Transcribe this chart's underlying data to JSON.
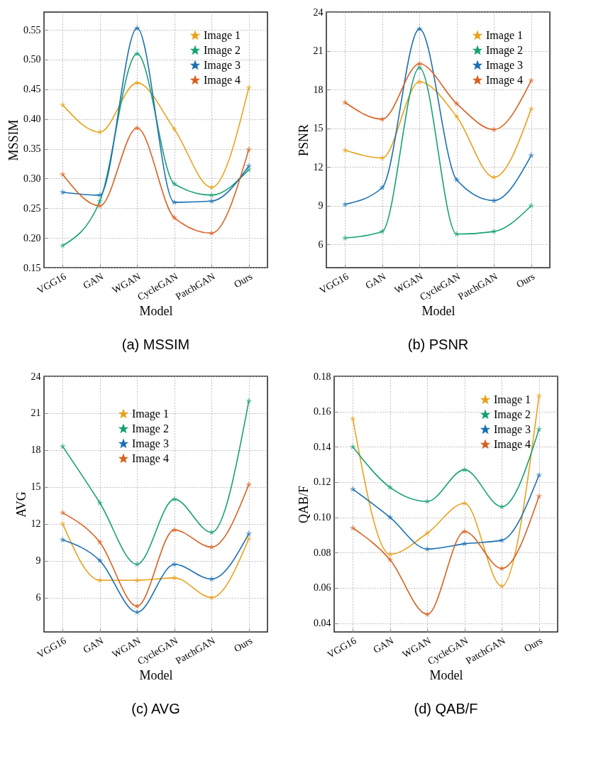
{
  "chart_data": [
    {
      "type": "line",
      "title": "(a) MSSIM",
      "xlabel": "Model",
      "ylabel": "MSSIM",
      "categories": [
        "VGG16",
        "GAN",
        "WGAN",
        "CycleGAN",
        "PatchGAN",
        "Ours"
      ],
      "ylim": [
        0.15,
        0.58
      ],
      "yticks": [
        0.15,
        {
          "value": 0.2,
          "label": "0.20"
        },
        0.25,
        {
          "value": 0.3,
          "label": "0.30"
        },
        0.35,
        {
          "value": 0.4,
          "label": "0.40"
        },
        0.45,
        {
          "value": 0.5,
          "label": "0.50"
        },
        0.55
      ],
      "grid": true,
      "legend": "top right",
      "marker": "star",
      "line_style": "solid",
      "series": [
        {
          "name": "Image 1",
          "color": "#e8a21c",
          "values": [
            0.424,
            0.378,
            0.461,
            0.383,
            0.285,
            0.453
          ]
        },
        {
          "name": "Image 2",
          "color": "#17a076",
          "values": [
            0.187,
            0.262,
            0.51,
            0.291,
            0.272,
            0.315
          ]
        },
        {
          "name": "Image 3",
          "color": "#1b6fb3",
          "values": [
            0.277,
            0.272,
            0.553,
            0.26,
            0.262,
            0.321
          ]
        },
        {
          "name": "Image 4",
          "color": "#d9601f",
          "values": [
            0.307,
            0.254,
            0.385,
            0.234,
            0.208,
            0.349
          ]
        }
      ]
    },
    {
      "type": "line",
      "title": "(b) PSNR",
      "xlabel": "Model",
      "ylabel": "PSNR",
      "categories": [
        "VGG16",
        "GAN",
        "WGAN",
        "CycleGAN",
        "PatchGAN",
        "Ours"
      ],
      "ylim": [
        4.2,
        24
      ],
      "yticks": [
        6,
        9,
        12,
        15,
        18,
        21,
        24
      ],
      "grid": true,
      "legend": "top right",
      "marker": "star",
      "line_style": "solid",
      "series": [
        {
          "name": "Image 1",
          "color": "#e8a21c",
          "values": [
            13.3,
            12.7,
            18.6,
            15.9,
            11.2,
            16.5
          ]
        },
        {
          "name": "Image 2",
          "color": "#17a076",
          "values": [
            6.5,
            7.0,
            19.7,
            6.8,
            7.0,
            9.0
          ]
        },
        {
          "name": "Image 3",
          "color": "#1b6fb3",
          "values": [
            9.1,
            10.4,
            22.7,
            11.0,
            9.4,
            12.9
          ]
        },
        {
          "name": "Image 4",
          "color": "#d9601f",
          "values": [
            17.0,
            15.7,
            20.0,
            16.9,
            14.9,
            18.7
          ]
        }
      ]
    },
    {
      "type": "line",
      "title": "(c) AVG",
      "xlabel": "Model",
      "ylabel": "AVG",
      "categories": [
        "VGG16",
        "GAN",
        "WGAN",
        "CycleGAN",
        "PatchGAN",
        "Ours"
      ],
      "ylim": [
        3.2,
        24
      ],
      "yticks": [
        6,
        9,
        12,
        15,
        18,
        21,
        24
      ],
      "grid": true,
      "legend": "top",
      "marker": "star",
      "line_style": "solid",
      "series": [
        {
          "name": "Image 1",
          "color": "#e8a21c",
          "values": [
            12.0,
            7.4,
            7.4,
            7.6,
            6.0,
            10.8
          ]
        },
        {
          "name": "Image 2",
          "color": "#17a076",
          "values": [
            18.3,
            13.7,
            8.7,
            14.0,
            11.3,
            22.0
          ]
        },
        {
          "name": "Image 3",
          "color": "#1b6fb3",
          "values": [
            10.7,
            9.0,
            4.8,
            8.7,
            7.5,
            11.2
          ]
        },
        {
          "name": "Image 4",
          "color": "#d9601f",
          "values": [
            12.9,
            10.5,
            5.3,
            11.5,
            10.1,
            15.2
          ]
        }
      ]
    },
    {
      "type": "line",
      "title": "(d) QAB/F",
      "xlabel": "Model",
      "ylabel": "QAB/F",
      "categories": [
        "VGG16",
        "GAN",
        "WGAN",
        "CycleGAN",
        "PatchGAN",
        "Ours"
      ],
      "ylim": [
        0.035,
        0.18
      ],
      "yticks": [
        0.04,
        0.06,
        0.08,
        {
          "value": 0.1,
          "label": "0.10"
        },
        0.12,
        0.14,
        0.16,
        0.18
      ],
      "grid": true,
      "legend": "top right",
      "marker": "star",
      "line_style": "solid",
      "series": [
        {
          "name": "Image 1",
          "color": "#e8a21c",
          "values": [
            0.156,
            0.079,
            0.091,
            0.108,
            0.061,
            0.169
          ]
        },
        {
          "name": "Image 2",
          "color": "#17a076",
          "values": [
            0.14,
            0.117,
            0.109,
            0.127,
            0.106,
            0.15
          ]
        },
        {
          "name": "Image 3",
          "color": "#1b6fb3",
          "values": [
            0.116,
            0.1,
            0.082,
            0.085,
            0.087,
            0.124
          ]
        },
        {
          "name": "Image 4",
          "color": "#d9601f",
          "values": [
            0.094,
            0.076,
            0.045,
            0.092,
            0.071,
            0.112
          ]
        }
      ]
    }
  ]
}
